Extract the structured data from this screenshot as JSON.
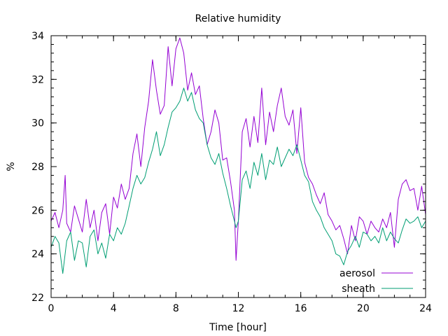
{
  "chart_data": {
    "type": "line",
    "title": "Relative humidity",
    "xlabel": "Time [hour]",
    "ylabel": "%",
    "xlim": [
      0,
      24
    ],
    "ylim": [
      22,
      34
    ],
    "xticks": [
      0,
      4,
      8,
      12,
      16,
      20,
      24
    ],
    "yticks": [
      22,
      24,
      26,
      28,
      30,
      32,
      34
    ],
    "x_minor_step": 1,
    "y_minor_step": 0.4,
    "grid": false,
    "legend_position": "bottom-right",
    "series": [
      {
        "name": "aerosol",
        "color": "#9400d3",
        "x": [
          0.0,
          0.25,
          0.5,
          0.75,
          0.9,
          1.0,
          1.25,
          1.5,
          1.75,
          2.0,
          2.25,
          2.5,
          2.75,
          3.0,
          3.25,
          3.5,
          3.75,
          4.0,
          4.25,
          4.5,
          4.75,
          5.0,
          5.25,
          5.5,
          5.75,
          6.0,
          6.25,
          6.5,
          6.75,
          7.0,
          7.25,
          7.5,
          7.75,
          8.0,
          8.25,
          8.5,
          8.75,
          9.0,
          9.25,
          9.5,
          9.75,
          10.0,
          10.25,
          10.5,
          10.75,
          11.0,
          11.25,
          11.5,
          11.75,
          11.85,
          12.0,
          12.25,
          12.5,
          12.75,
          13.0,
          13.25,
          13.5,
          13.75,
          14.0,
          14.25,
          14.5,
          14.75,
          15.0,
          15.25,
          15.5,
          15.75,
          16.0,
          16.25,
          16.5,
          16.75,
          17.0,
          17.25,
          17.5,
          17.75,
          18.0,
          18.25,
          18.5,
          18.75,
          19.0,
          19.25,
          19.5,
          19.75,
          20.0,
          20.25,
          20.5,
          20.75,
          21.0,
          21.25,
          21.5,
          21.75,
          22.0,
          22.25,
          22.5,
          22.75,
          23.0,
          23.25,
          23.5,
          23.75,
          24.0
        ],
        "y": [
          25.5,
          25.9,
          25.2,
          26.0,
          27.6,
          25.4,
          25.0,
          26.2,
          25.6,
          25.0,
          26.5,
          25.2,
          26.0,
          24.6,
          25.9,
          26.3,
          24.9,
          26.6,
          26.1,
          27.2,
          26.5,
          27.0,
          28.6,
          29.5,
          28.0,
          29.8,
          31.0,
          32.9,
          31.5,
          30.4,
          30.8,
          33.5,
          31.7,
          33.4,
          33.9,
          33.2,
          31.5,
          32.3,
          31.3,
          31.7,
          30.2,
          29.0,
          29.6,
          30.6,
          30.0,
          28.3,
          28.4,
          27.3,
          26.0,
          23.7,
          25.5,
          29.6,
          30.2,
          28.9,
          30.3,
          29.1,
          31.6,
          29.0,
          30.5,
          29.6,
          30.8,
          31.6,
          30.3,
          29.9,
          30.6,
          28.6,
          30.7,
          28.2,
          27.5,
          27.2,
          26.7,
          26.3,
          26.8,
          25.8,
          25.5,
          25.1,
          25.3,
          24.7,
          24.0,
          25.3,
          24.6,
          25.7,
          25.5,
          24.9,
          25.5,
          25.2,
          25.0,
          25.6,
          25.2,
          25.9,
          24.3,
          26.5,
          27.2,
          27.4,
          26.9,
          27.0,
          26.0,
          27.1,
          25.8
        ]
      },
      {
        "name": "sheath",
        "color": "#009e73",
        "x": [
          0.0,
          0.25,
          0.5,
          0.75,
          1.0,
          1.25,
          1.5,
          1.75,
          2.0,
          2.25,
          2.5,
          2.75,
          3.0,
          3.25,
          3.5,
          3.75,
          4.0,
          4.25,
          4.5,
          4.75,
          5.0,
          5.25,
          5.5,
          5.75,
          6.0,
          6.25,
          6.5,
          6.75,
          7.0,
          7.25,
          7.5,
          7.75,
          8.0,
          8.25,
          8.5,
          8.75,
          9.0,
          9.25,
          9.5,
          9.75,
          10.0,
          10.25,
          10.5,
          10.75,
          11.0,
          11.25,
          11.5,
          11.75,
          11.85,
          12.0,
          12.25,
          12.5,
          12.75,
          13.0,
          13.25,
          13.5,
          13.75,
          14.0,
          14.25,
          14.5,
          14.75,
          15.0,
          15.25,
          15.5,
          15.75,
          16.0,
          16.25,
          16.5,
          16.75,
          17.0,
          17.25,
          17.5,
          17.75,
          18.0,
          18.25,
          18.5,
          18.75,
          19.0,
          19.25,
          19.5,
          19.75,
          20.0,
          20.25,
          20.5,
          20.75,
          21.0,
          21.25,
          21.5,
          21.75,
          22.0,
          22.25,
          22.5,
          22.75,
          23.0,
          23.25,
          23.5,
          23.75,
          24.0
        ],
        "y": [
          24.3,
          24.8,
          24.5,
          23.1,
          24.6,
          25.0,
          23.7,
          24.6,
          24.5,
          23.4,
          24.8,
          25.1,
          24.0,
          24.5,
          23.8,
          24.9,
          24.6,
          25.2,
          24.9,
          25.4,
          26.2,
          27.0,
          27.6,
          27.2,
          27.5,
          28.2,
          28.8,
          29.6,
          28.5,
          29.0,
          29.8,
          30.5,
          30.7,
          31.0,
          31.6,
          31.0,
          31.4,
          30.6,
          30.2,
          30.0,
          29.0,
          28.4,
          28.1,
          28.6,
          27.7,
          27.0,
          26.2,
          25.5,
          25.2,
          25.5,
          27.4,
          27.8,
          27.0,
          28.2,
          27.6,
          28.6,
          27.4,
          28.3,
          28.1,
          28.9,
          28.0,
          28.4,
          28.8,
          28.5,
          29.0,
          28.3,
          27.6,
          27.3,
          26.4,
          26.0,
          25.7,
          25.2,
          24.9,
          24.6,
          24.0,
          23.9,
          23.5,
          24.1,
          24.4,
          24.8,
          24.3,
          25.0,
          24.9,
          24.6,
          24.8,
          24.5,
          25.2,
          24.6,
          25.0,
          24.7,
          24.5,
          25.1,
          25.6,
          25.4,
          25.5,
          25.7,
          25.2,
          25.5
        ]
      }
    ]
  }
}
